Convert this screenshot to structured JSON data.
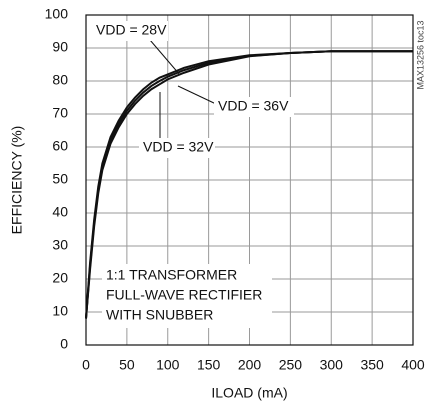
{
  "chart_data": {
    "type": "line",
    "xlabel": "ILOAD (mA)",
    "ylabel": "EFFICIENCY (%)",
    "note": "MAX13256 toc13",
    "annotation": [
      "1:1 TRANSFORMER",
      "FULL-WAVE RECTIFIER",
      "WITH SNUBBER"
    ],
    "x": [
      0,
      5,
      10,
      15,
      20,
      30,
      40,
      50,
      60,
      70,
      80,
      90,
      100,
      120,
      150,
      200,
      250,
      300,
      350,
      400
    ],
    "series": [
      {
        "name": "VDD = 28V",
        "color": "#111111",
        "values": [
          8,
          25,
          38,
          48,
          55,
          63,
          68,
          72,
          75,
          77.5,
          79.5,
          81,
          82,
          84,
          86,
          87.8,
          88.5,
          89,
          89,
          89
        ]
      },
      {
        "name": "VDD = 32V",
        "color": "#111111",
        "values": [
          8,
          24,
          37,
          47,
          54,
          62,
          67,
          71,
          74,
          76.5,
          78.5,
          80,
          81.3,
          83.3,
          85.5,
          87.6,
          88.5,
          89,
          89,
          89
        ]
      },
      {
        "name": "VDD = 36V",
        "color": "#111111",
        "values": [
          8,
          23,
          36,
          46,
          53,
          61,
          66,
          70,
          73,
          75.5,
          77.5,
          79,
          80.5,
          82.5,
          85,
          87.5,
          88.5,
          89,
          89,
          89
        ]
      }
    ],
    "xlim": [
      0,
      400
    ],
    "xticks": [
      0,
      50,
      100,
      150,
      200,
      250,
      300,
      350,
      400
    ],
    "ylim": [
      0,
      100
    ],
    "yticks": [
      0,
      10,
      20,
      30,
      40,
      50,
      60,
      70,
      80,
      90,
      100
    ],
    "grid": true
  }
}
